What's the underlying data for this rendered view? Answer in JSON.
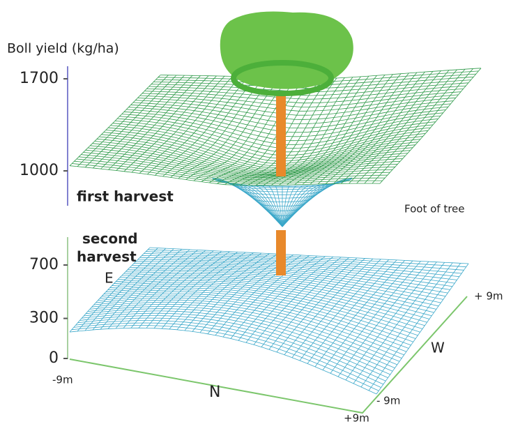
{
  "axis": {
    "label": "Boll yield (kg/ha)",
    "upper_ticks": [
      1700,
      1000
    ],
    "lower_ticks": [
      700,
      300,
      0
    ]
  },
  "harvests": {
    "first": "first harvest",
    "second": "second harvest"
  },
  "foot_label": "Foot of tree",
  "east_label": "E",
  "ns_axis": {
    "start": "-9m",
    "label": "N",
    "end": "+9m"
  },
  "we_axis": {
    "start": "- 9m",
    "label": "W",
    "end": "+ 9m"
  }
}
